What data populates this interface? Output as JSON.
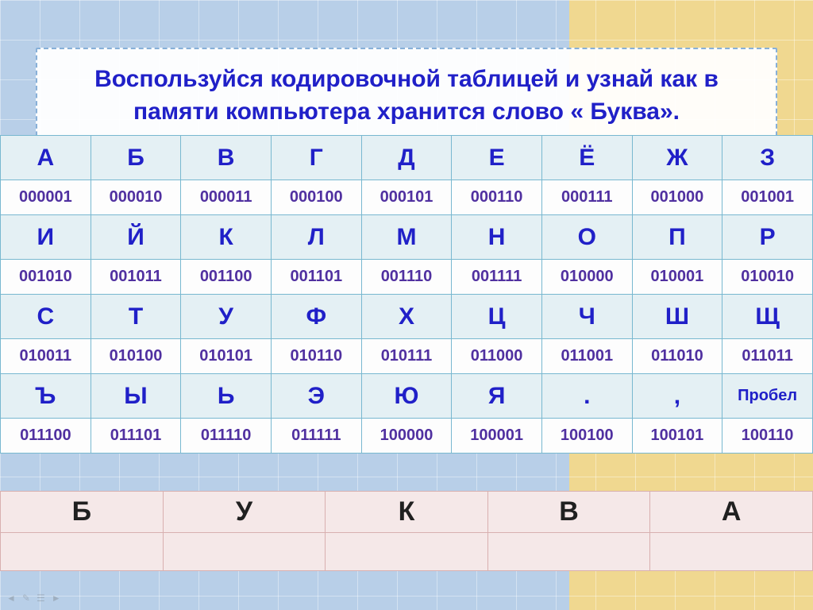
{
  "title": "Воспользуйся кодировочной таблицей  и узнай как в памяти компьютера хранится слово « Буква».",
  "colors": {
    "title_text": "#2020c8",
    "letter_text": "#2020c8",
    "code_text": "#5030a0",
    "letter_bg": "#e4f0f4",
    "code_bg": "#fdfdfd",
    "table_border": "#78b8d0",
    "answer_bg": "#f5e8e8",
    "answer_border": "#d8b0b0"
  },
  "typography": {
    "title_fontsize": 30,
    "letter_fontsize": 30,
    "code_fontsize": 20,
    "answer_fontsize": 34
  },
  "encoding": {
    "columns": 9,
    "rows": [
      {
        "letters": [
          "А",
          "Б",
          "В",
          "Г",
          "Д",
          "Е",
          "Ё",
          "Ж",
          "З"
        ],
        "codes": [
          "000001",
          "000010",
          "000011",
          "000100",
          "000101",
          "000110",
          "000111",
          "001000",
          "001001"
        ]
      },
      {
        "letters": [
          "И",
          "Й",
          "К",
          "Л",
          "М",
          "Н",
          "О",
          "П",
          "Р"
        ],
        "codes": [
          "001010",
          "001011",
          "001100",
          "001101",
          "001110",
          "001111",
          "010000",
          "010001",
          "010010"
        ]
      },
      {
        "letters": [
          "С",
          "Т",
          "У",
          "Ф",
          "Х",
          "Ц",
          "Ч",
          "Ш",
          "Щ"
        ],
        "codes": [
          "010011",
          "010100",
          "010101",
          "010110",
          "010111",
          "011000",
          "011001",
          "011010",
          "011011"
        ]
      },
      {
        "letters": [
          "Ъ",
          "Ы",
          "Ь",
          "Э",
          "Ю",
          "Я",
          ".",
          ",",
          "Пробел"
        ],
        "codes": [
          "011100",
          "011101",
          "011110",
          "011111",
          "100000",
          "100001",
          "100100",
          "100101",
          "100110"
        ]
      }
    ]
  },
  "answer": {
    "letters": [
      "Б",
      "У",
      "К",
      "В",
      "А"
    ],
    "blanks": [
      "",
      "",
      "",
      "",
      ""
    ]
  }
}
